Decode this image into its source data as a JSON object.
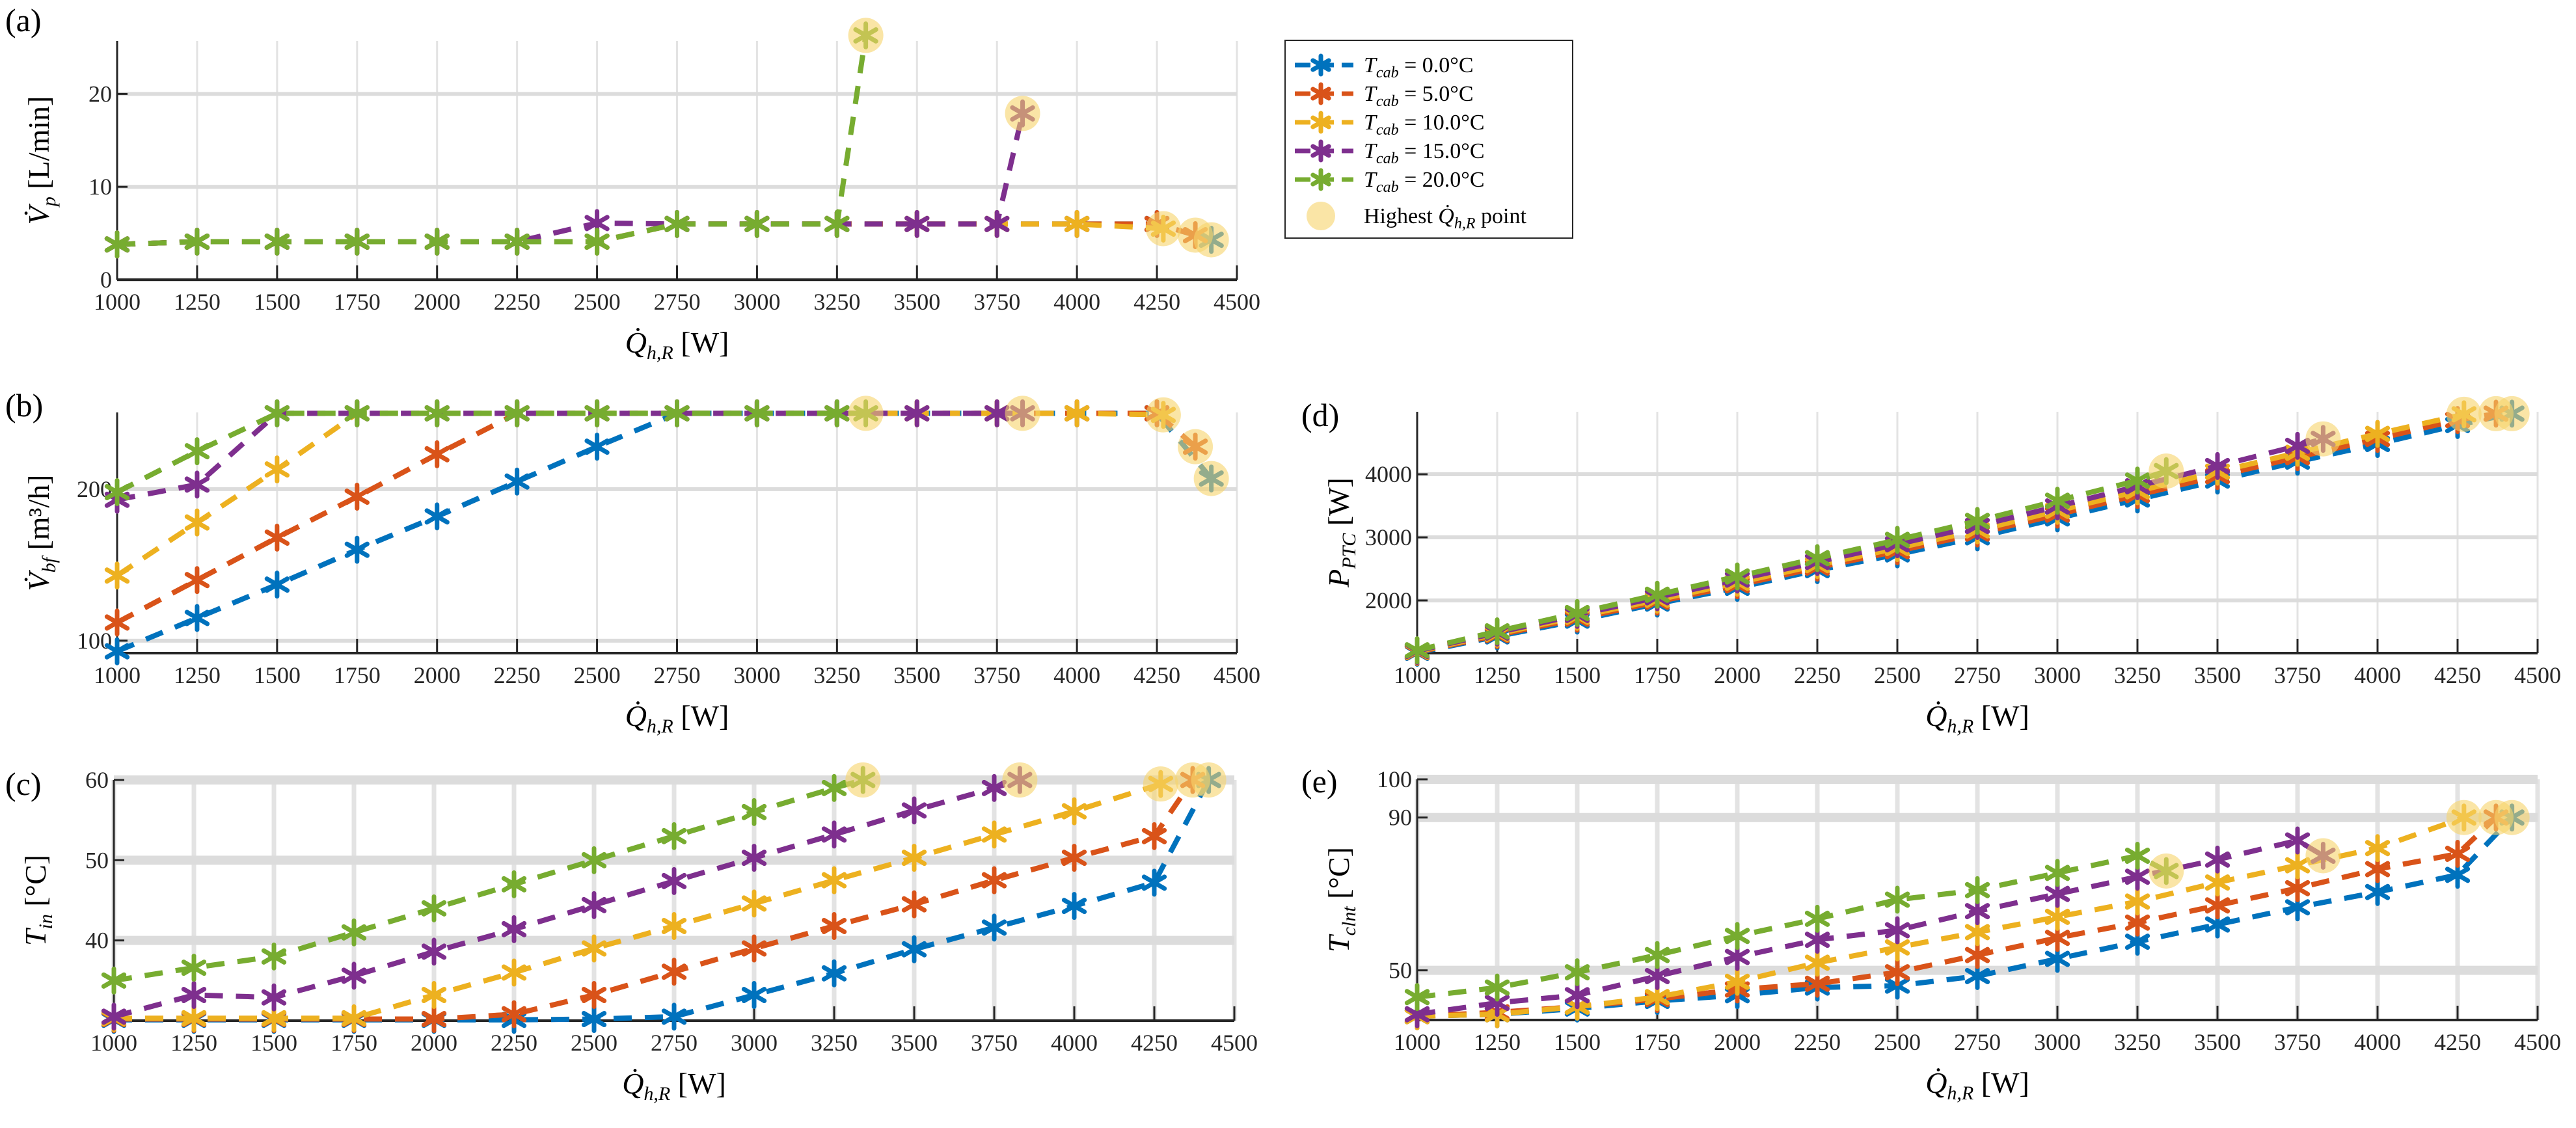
{
  "legend": {
    "items": [
      {
        "sym": "T",
        "sub": "cab",
        "text": " = 0.0°C",
        "color": "#0072BD"
      },
      {
        "sym": "T",
        "sub": "cab",
        "text": " = 5.0°C",
        "color": "#D95319"
      },
      {
        "sym": "T",
        "sub": "cab",
        "text": " = 10.0°C",
        "color": "#EDB120"
      },
      {
        "sym": "T",
        "sub": "cab",
        "text": " = 15.0°C",
        "color": "#7E2F8E"
      },
      {
        "sym": "T",
        "sub": "cab",
        "text": " = 20.0°C",
        "color": "#77AC30"
      }
    ],
    "highlight": {
      "pre": "Highest ",
      "sym": "Q̇",
      "sub": "h,R",
      "post": " point",
      "color": "#F7D36A"
    }
  },
  "chart_data": [
    {
      "panel": "(a)",
      "type": "line",
      "xlim": [
        1000,
        4500
      ],
      "ylim": [
        0,
        25.7
      ],
      "xticks": [
        1000,
        1250,
        1500,
        1750,
        2000,
        2250,
        2500,
        2750,
        3000,
        3250,
        3500,
        3750,
        4000,
        4250,
        4500
      ],
      "yticks": [
        0,
        10,
        20
      ],
      "grid": true,
      "xlabel": {
        "sym": "Q̇",
        "sub": "h,R",
        "unit": " [W]"
      },
      "ylabel": {
        "sym": "V̇",
        "sub": "p",
        "unit": " [L/min]"
      },
      "series": [
        {
          "name": "T_cab = 0.0°C",
          "y": [
            3.8,
            4.1,
            4.1,
            4.1,
            4.1,
            4.1,
            4.1,
            6,
            6,
            6,
            6,
            6,
            6,
            6,
            4.3
          ]
        },
        {
          "name": "T_cab = 5.0°C",
          "y": [
            3.8,
            4.1,
            4.1,
            4.1,
            4.1,
            4.1,
            4.1,
            6,
            6,
            6,
            6,
            6,
            6,
            6,
            4.8
          ]
        },
        {
          "name": "T_cab = 10.0°C",
          "y": [
            3.8,
            4.1,
            4.1,
            4.1,
            4.1,
            4.1,
            4.1,
            6,
            6,
            6,
            6,
            6,
            6,
            5.5
          ]
        },
        {
          "name": "T_cab = 15.0°C",
          "y": [
            3.8,
            4.1,
            4.1,
            4.1,
            4.1,
            4.1,
            6.1,
            6,
            6,
            6,
            6,
            6,
            17.9
          ]
        },
        {
          "name": "T_cab = 20.0°C",
          "y": [
            3.8,
            4.1,
            4.1,
            4.1,
            4.1,
            4.1,
            4.1,
            6,
            6,
            6,
            26.3
          ]
        }
      ]
    },
    {
      "panel": "(b)",
      "type": "line",
      "xlim": [
        1000,
        4500
      ],
      "ylim": [
        91.8,
        250.6
      ],
      "xticks": [
        1000,
        1250,
        1500,
        1750,
        2000,
        2250,
        2500,
        2750,
        3000,
        3250,
        3500,
        3750,
        4000,
        4250,
        4500
      ],
      "yticks": [
        100,
        200
      ],
      "grid": true,
      "xlabel": {
        "sym": "Q̇",
        "sub": "h,R",
        "unit": " [W]"
      },
      "ylabel": {
        "sym": "V̇",
        "sub": "bf",
        "unit": " [m³/h]"
      },
      "series": [
        {
          "name": "T_cab = 0.0°C",
          "y": [
            93,
            115,
            137,
            160,
            182,
            205,
            228,
            250,
            250,
            250,
            250,
            250,
            250,
            250,
            207
          ]
        },
        {
          "name": "T_cab = 5.0°C",
          "y": [
            112,
            140,
            168,
            195,
            223,
            250,
            250,
            250,
            250,
            250,
            250,
            250,
            250,
            250,
            228
          ]
        },
        {
          "name": "T_cab = 10.0°C",
          "y": [
            143,
            178,
            213,
            250,
            250,
            250,
            250,
            250,
            250,
            250,
            250,
            250,
            250,
            249
          ]
        },
        {
          "name": "T_cab = 15.0°C",
          "y": [
            193,
            203,
            250,
            250,
            250,
            250,
            250,
            250,
            250,
            250,
            250,
            250,
            250
          ]
        },
        {
          "name": "T_cab = 20.0°C",
          "y": [
            198,
            225,
            250,
            250,
            250,
            250,
            250,
            250,
            250,
            250,
            250
          ]
        }
      ]
    },
    {
      "panel": "(c)",
      "type": "line",
      "xlim": [
        1000,
        4500
      ],
      "ylim": [
        30,
        60
      ],
      "xticks": [
        1000,
        1250,
        1500,
        1750,
        2000,
        2250,
        2500,
        2750,
        3000,
        3250,
        3500,
        3750,
        4000,
        4250,
        4500
      ],
      "yticks": [
        40,
        50,
        60
      ],
      "grid": true,
      "xlabel": {
        "sym": "Q̇",
        "sub": "h,R",
        "unit": " [W]"
      },
      "ylabel": {
        "sym": "T",
        "sub": "in",
        "unit": " [°C]"
      },
      "series": [
        {
          "name": "T_cab = 0.0°C",
          "y": [
            30.1,
            30.1,
            30.1,
            30.1,
            30.1,
            30.1,
            30.2,
            30.5,
            33.2,
            35.9,
            38.9,
            41.6,
            44.3,
            47.2,
            60
          ]
        },
        {
          "name": "T_cab = 5.0°C",
          "y": [
            30.2,
            30.2,
            30.2,
            30.2,
            30.2,
            30.8,
            33.2,
            36.1,
            39,
            41.8,
            44.5,
            47.5,
            50.3,
            53,
            60
          ]
        },
        {
          "name": "T_cab = 10.0°C",
          "y": [
            30.3,
            30.3,
            30.3,
            30.3,
            33.2,
            36,
            39,
            41.8,
            44.6,
            47.5,
            50.3,
            53.2,
            56.1,
            59.5
          ]
        },
        {
          "name": "T_cab = 15.0°C",
          "y": [
            30.5,
            33.2,
            32.9,
            35.6,
            38.6,
            41.4,
            44.4,
            47.4,
            50.3,
            53.2,
            56.2,
            59,
            60
          ]
        },
        {
          "name": "T_cab = 20.0°C",
          "y": [
            35,
            36.6,
            38,
            41,
            44,
            47,
            50,
            53,
            56,
            59,
            60
          ]
        }
      ]
    },
    {
      "panel": "(d)",
      "type": "line",
      "xlim": [
        1000,
        4500
      ],
      "ylim": [
        1165,
        4990
      ],
      "xticks": [
        1000,
        1250,
        1500,
        1750,
        2000,
        2250,
        2500,
        2750,
        3000,
        3250,
        3500,
        3750,
        4000,
        4250,
        4500
      ],
      "yticks": [
        2000,
        3000,
        4000
      ],
      "grid": true,
      "xlabel": {
        "sym": "Q̇",
        "sub": "h,R",
        "unit": " [W]"
      },
      "ylabel": {
        "sym": "P",
        "sub": "PTC",
        "unit": " [W]"
      },
      "series": [
        {
          "name": "T_cab = 0.0°C",
          "y": [
            1170,
            1430,
            1680,
            1950,
            2200,
            2480,
            2730,
            3000,
            3300,
            3600,
            3900,
            4200,
            4480,
            4780,
            4960
          ]
        },
        {
          "name": "T_cab = 5.0°C",
          "y": [
            1180,
            1450,
            1710,
            1980,
            2240,
            2520,
            2780,
            3060,
            3360,
            3670,
            3970,
            4270,
            4560,
            4860,
            4960
          ]
        },
        {
          "name": "T_cab = 10.0°C",
          "y": [
            1190,
            1470,
            1740,
            2010,
            2280,
            2560,
            2830,
            3110,
            3420,
            3730,
            4040,
            4340,
            4640,
            4950
          ]
        },
        {
          "name": "T_cab = 15.0°C",
          "y": [
            1200,
            1490,
            1770,
            2050,
            2330,
            2610,
            2890,
            3180,
            3490,
            3810,
            4130,
            4450,
            4560
          ]
        },
        {
          "name": "T_cab = 20.0°C",
          "y": [
            1210,
            1510,
            1800,
            2090,
            2380,
            2670,
            2960,
            3260,
            3580,
            3900,
            4050
          ]
        }
      ]
    },
    {
      "panel": "(e)",
      "type": "line",
      "xlim": [
        1000,
        4500
      ],
      "ylim": [
        37,
        100
      ],
      "xticks": [
        1000,
        1250,
        1500,
        1750,
        2000,
        2250,
        2500,
        2750,
        3000,
        3250,
        3500,
        3750,
        4000,
        4250,
        4500
      ],
      "yticks": [
        50,
        90,
        100
      ],
      "grid": true,
      "xlabel": {
        "sym": "Q̇",
        "sub": "h,R",
        "unit": " [W]"
      },
      "ylabel": {
        "sym": "T",
        "sub": "clnt",
        "unit": " [°C]"
      },
      "series": [
        {
          "name": "T_cab = 0.0°C",
          "y": [
            38,
            38.5,
            40,
            42,
            43.5,
            45.5,
            46,
            48.5,
            53,
            57.5,
            62,
            66.5,
            70.5,
            75,
            90
          ]
        },
        {
          "name": "T_cab = 5.0°C",
          "y": [
            38,
            39,
            40.5,
            42.5,
            45,
            46.5,
            49.5,
            54,
            58.5,
            62.5,
            67,
            71.5,
            76.5,
            80.5,
            90
          ]
        },
        {
          "name": "T_cab = 10.0°C",
          "y": [
            38,
            38.5,
            40.5,
            43,
            47,
            52,
            56,
            60,
            64,
            68,
            73,
            77.5,
            82,
            90
          ]
        },
        {
          "name": "T_cab = 15.0°C",
          "y": [
            38.5,
            41.5,
            43.5,
            48.5,
            53.5,
            58,
            60.5,
            65.5,
            70,
            74.5,
            79,
            84,
            80
          ]
        },
        {
          "name": "T_cab = 20.0°C",
          "y": [
            43,
            45.5,
            49.5,
            54,
            59,
            63.5,
            68.5,
            71,
            75.5,
            80,
            76
          ]
        }
      ]
    }
  ],
  "series_x": [
    [
      1000,
      1250,
      1500,
      1750,
      2000,
      2250,
      2500,
      2750,
      3000,
      3250,
      3500,
      3750,
      4000,
      4250,
      4420
    ],
    [
      1000,
      1250,
      1500,
      1750,
      2000,
      2250,
      2500,
      2750,
      3000,
      3250,
      3500,
      3750,
      4000,
      4250,
      4370
    ],
    [
      1000,
      1250,
      1500,
      1750,
      2000,
      2250,
      2500,
      2750,
      3000,
      3250,
      3500,
      3750,
      4000,
      4270
    ],
    [
      1000,
      1250,
      1500,
      1750,
      2000,
      2250,
      2500,
      2750,
      3000,
      3250,
      3500,
      3750,
      3830
    ],
    [
      1000,
      1250,
      1500,
      1750,
      2000,
      2250,
      2500,
      2750,
      3000,
      3250,
      3340
    ]
  ]
}
